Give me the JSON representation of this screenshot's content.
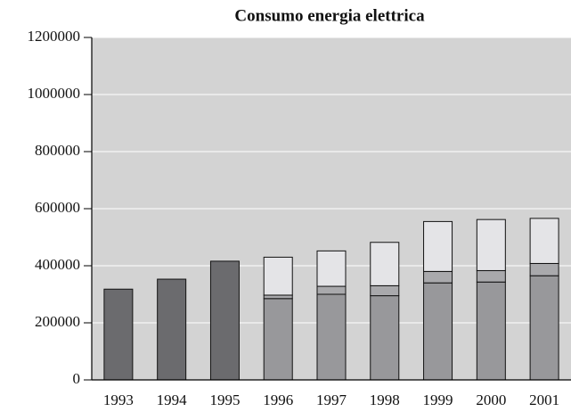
{
  "chart_data": {
    "type": "stacked_bar",
    "title": "Consumo energia elettrica",
    "categories": [
      "1993",
      "1994",
      "1995",
      "1996",
      "1997",
      "1998",
      "1999",
      "2000",
      "2001"
    ],
    "series": [
      {
        "color": "#6b6b6e",
        "values": [
          318000,
          353000,
          416000,
          null,
          null,
          null,
          null,
          null,
          null
        ]
      },
      {
        "color": "#98989b",
        "values": [
          null,
          null,
          null,
          285000,
          300000,
          295000,
          340000,
          343000,
          365000
        ]
      },
      {
        "color": "#a9a9ac",
        "values": [
          null,
          null,
          null,
          12000,
          28000,
          35000,
          40000,
          40000,
          43000
        ]
      },
      {
        "color": "#e4e4e7",
        "values": [
          null,
          null,
          null,
          133000,
          124000,
          152000,
          175000,
          179000,
          158000
        ]
      }
    ],
    "ylim": [
      0,
      1200000
    ],
    "yticks": [
      0,
      200000,
      400000,
      600000,
      800000,
      1000000,
      1200000
    ],
    "grid": true,
    "background": "#d3d3d3"
  }
}
